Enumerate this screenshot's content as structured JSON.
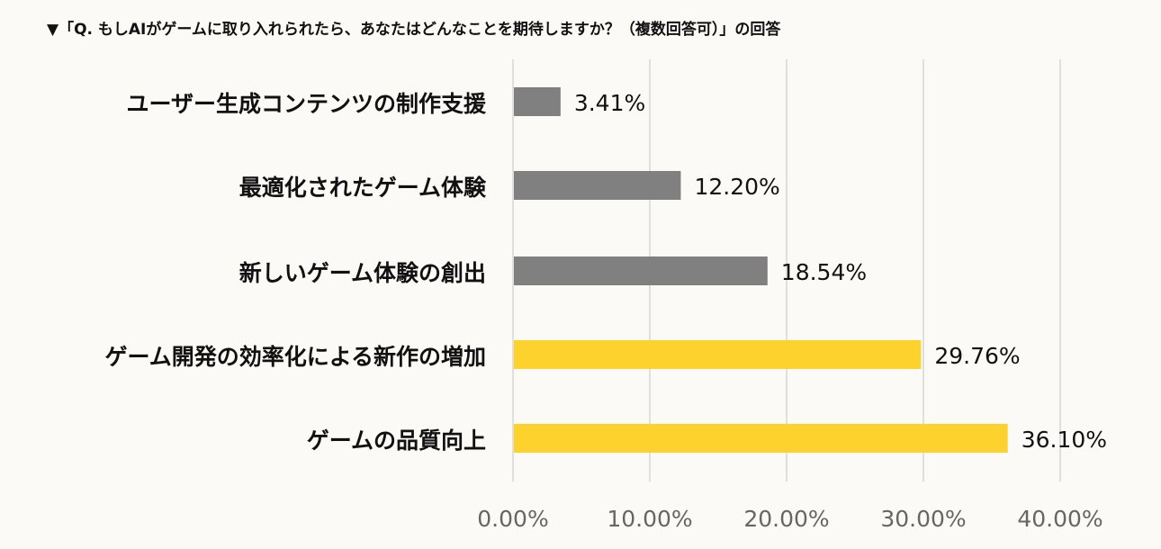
{
  "chart_data": {
    "type": "bar",
    "orientation": "horizontal",
    "title": "▼「Q. もしAIがゲームに取り入れられたら、あなたはどんなことを期待しますか？（複数回答可）」の回答",
    "categories": [
      "ユーザー生成コンテンツの制作支援",
      "最適化されたゲーム体験",
      "新しいゲーム体験の創出",
      "ゲーム開発の効率化による新作の増加",
      "ゲームの品質向上"
    ],
    "values": [
      3.41,
      12.2,
      18.54,
      29.76,
      36.1
    ],
    "data_labels": [
      "3.41%",
      "12.20%",
      "18.54%",
      "29.76%",
      "36.10%"
    ],
    "xlim": [
      0,
      40
    ],
    "xticks": [
      0,
      10,
      20,
      30,
      40
    ],
    "xtick_labels": [
      "0.00%",
      "10.00%",
      "20.00%",
      "30.00%",
      "40.00%"
    ],
    "grid": "vertical",
    "colors": [
      "#808080",
      "#808080",
      "#808080",
      "#fdd22d",
      "#fdd22d"
    ],
    "gridline_color": "#d6d6d6"
  }
}
